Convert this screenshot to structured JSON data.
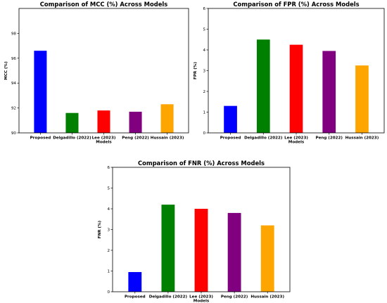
{
  "chart_data": [
    {
      "type": "bar",
      "title": "Comparison of MCC (%) Across Models",
      "xlabel": "Models",
      "ylabel": "MCC (%)",
      "categories": [
        "Proposed",
        "Delgadillo (2022)",
        "Lee (2023)",
        "Peng (2022)",
        "Hussain (2023)"
      ],
      "values": [
        96.6,
        91.6,
        91.8,
        91.7,
        92.3
      ],
      "colors": [
        "#0000ff",
        "#008000",
        "#ff0000",
        "#800080",
        "#ffa500"
      ],
      "ylim": [
        90,
        100
      ],
      "yticks": [
        90,
        92,
        94,
        96,
        98
      ],
      "grid": false
    },
    {
      "type": "bar",
      "title": "Comparison of FPR (%) Across Models",
      "xlabel": "Models",
      "ylabel": "FPR (%)",
      "categories": [
        "Proposed",
        "Delgadillo (2022)",
        "Lee (2023)",
        "Peng (2022)",
        "Hussain (2023)"
      ],
      "values": [
        1.3,
        4.5,
        4.25,
        3.95,
        3.25
      ],
      "colors": [
        "#0000ff",
        "#008000",
        "#ff0000",
        "#800080",
        "#ffa500"
      ],
      "ylim": [
        0,
        6
      ],
      "yticks": [
        0,
        1,
        2,
        3,
        4,
        5,
        6
      ],
      "grid": false
    },
    {
      "type": "bar",
      "title": "Comparison of FNR (%) Across Models",
      "xlabel": "Models",
      "ylabel": "FNR (%)",
      "categories": [
        "Proposed",
        "Delgadillo (2022)",
        "Lee (2023)",
        "Peng (2022)",
        "Hussain (2023)"
      ],
      "values": [
        0.95,
        4.2,
        4.0,
        3.8,
        3.2
      ],
      "colors": [
        "#0000ff",
        "#008000",
        "#ff0000",
        "#800080",
        "#ffa500"
      ],
      "ylim": [
        0,
        6
      ],
      "yticks": [
        0,
        1,
        2,
        3,
        4,
        5,
        6
      ],
      "grid": false
    }
  ]
}
